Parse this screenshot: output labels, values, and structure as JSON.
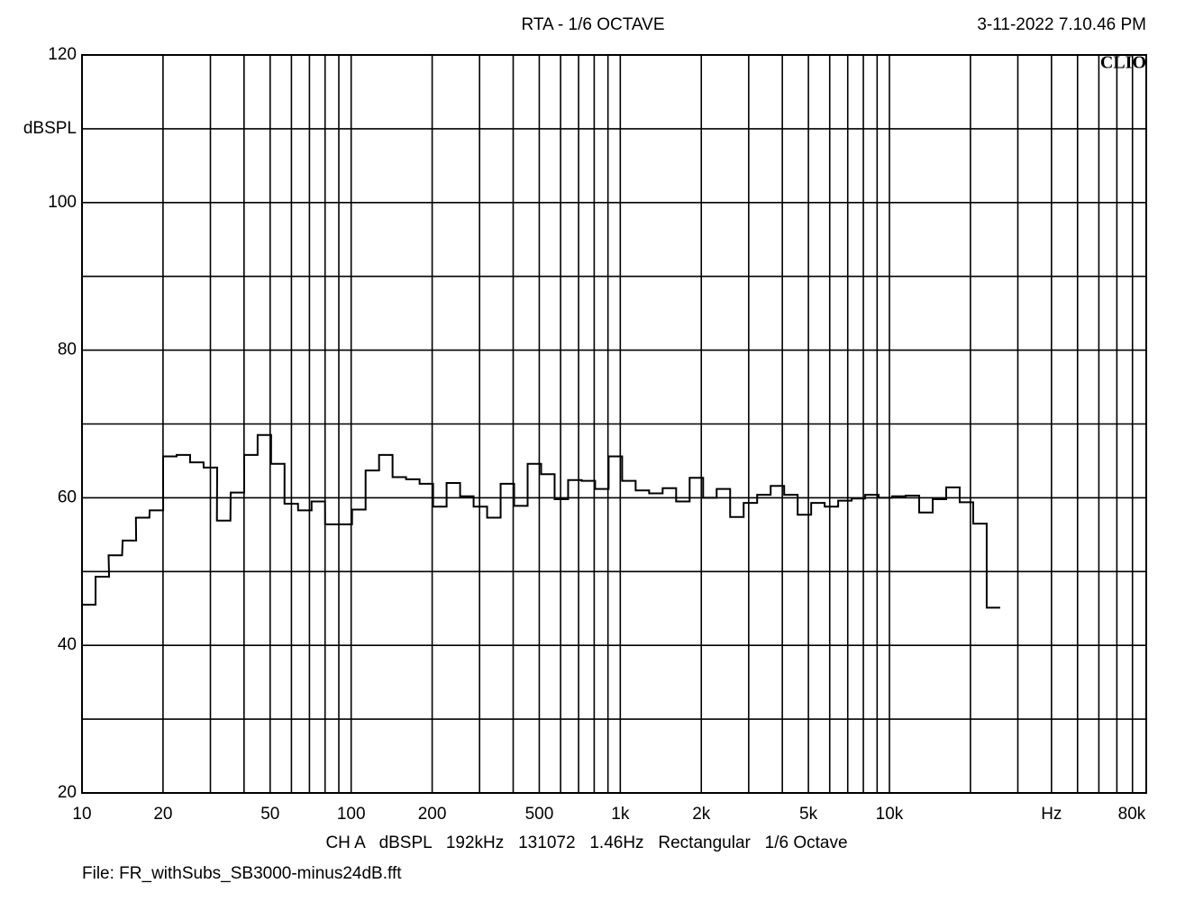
{
  "chart_data": {
    "type": "step",
    "title": "RTA - 1/6 OCTAVE",
    "timestamp": "3-11-2022 7.10.46 PM",
    "logo": "CLIO",
    "y_label": "dBSPL",
    "footer": "CH A   dBSPL   192kHz   131072   1.46Hz   Rectangular   1/6 Octave",
    "file": "File: FR_withSubs_SB3000-minus24dB.fft",
    "log_x": true,
    "grid": true,
    "xlim": [
      10,
      90000
    ],
    "ylim": [
      20,
      120
    ],
    "xticks": [
      10,
      20,
      50,
      100,
      200,
      500,
      {
        "value": 1000,
        "label": "1k"
      },
      {
        "value": 2000,
        "label": "2k"
      },
      {
        "value": 5000,
        "label": "5k"
      },
      {
        "value": 10000,
        "label": "10k"
      },
      {
        "value": 40000,
        "label": "Hz"
      },
      {
        "value": 80000,
        "label": "80k"
      }
    ],
    "xgrid": [
      30,
      40,
      60,
      70,
      80,
      90,
      300,
      400,
      600,
      700,
      800,
      900,
      3000,
      4000,
      6000,
      7000,
      8000,
      9000,
      20000,
      30000,
      50000,
      60000,
      70000
    ],
    "yticks": [
      20,
      40,
      60,
      80,
      100,
      120
    ],
    "ygrid": [
      30,
      50,
      70,
      90,
      110
    ],
    "y_label_at": 110,
    "series": [
      {
        "color": "#000000",
        "x": [
          10.6,
          11.9,
          13.3,
          15.0,
          16.8,
          18.9,
          21.2,
          23.8,
          26.7,
          30.0,
          33.6,
          37.8,
          42.4,
          47.6,
          53.4,
          59.9,
          67.3,
          75.5,
          84.8,
          95.1,
          106.8,
          119.9,
          134.5,
          151.0,
          169.5,
          190.3,
          213.6,
          239.7,
          269.1,
          302.1,
          339.1,
          380.6,
          427.2,
          479.5,
          538.2,
          604.1,
          678.1,
          761.1,
          854.3,
          958.9,
          1076.4,
          1208.2,
          1356.1,
          1522.2,
          1708.6,
          1917.8,
          2152.6,
          2416.2,
          2712.1,
          3044.2,
          3417.0,
          3835.4,
          4305.0,
          4832.2,
          5423.9,
          6088.1,
          6833.5,
          7670.3,
          8609.6,
          9663.8,
          10847.2,
          12175.4,
          13666.2,
          15339.6,
          17218.0,
          19326.4,
          21692.8,
          24349.1
        ],
        "values": [
          45.5,
          49.3,
          52.2,
          54.2,
          57.3,
          58.3,
          65.6,
          65.8,
          64.8,
          64.1,
          56.9,
          60.7,
          65.8,
          68.5,
          64.6,
          59.2,
          58.3,
          59.5,
          56.4,
          56.4,
          58.4,
          63.7,
          65.8,
          62.8,
          62.5,
          61.9,
          58.8,
          62.0,
          60.2,
          58.8,
          57.3,
          61.9,
          58.9,
          64.6,
          63.2,
          59.8,
          62.4,
          62.3,
          61.2,
          65.6,
          62.3,
          61.0,
          60.6,
          61.3,
          59.5,
          62.7,
          60.0,
          61.2,
          57.4,
          59.3,
          60.4,
          61.6,
          60.4,
          57.7,
          59.3,
          58.8,
          59.6,
          59.9,
          60.4,
          60.0,
          60.2,
          60.3,
          58.0,
          59.8,
          61.4,
          59.4,
          56.5,
          45.1
        ]
      }
    ]
  }
}
